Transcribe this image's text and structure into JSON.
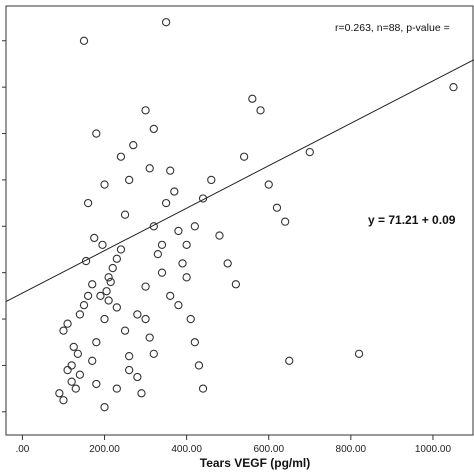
{
  "chart_data": {
    "type": "scatter",
    "title": "",
    "xlabel": "Tears VEGF (pg/ml)",
    "ylabel": "",
    "xlim": [
      -40,
      1100
    ],
    "ylim": [
      10,
      195
    ],
    "x_ticks": [
      0,
      200,
      400,
      600,
      800,
      1000
    ],
    "x_tick_labels": [
      ".00",
      "200.00",
      "400.00",
      "600.00",
      "800.00",
      "1000.00"
    ],
    "y_ticks": [
      20,
      40,
      60,
      80,
      100,
      120,
      140,
      160,
      180
    ],
    "grid": false,
    "annotation_stats": "r=0.263, n=88, p-value =",
    "annotation_equation": "y = 71.21 + 0.09",
    "fit_line": {
      "intercept": 71.21,
      "slope": 0.0915
    },
    "series": [
      {
        "points": [
          [
            90,
            28
          ],
          [
            120,
            40
          ],
          [
            135,
            45
          ],
          [
            100,
            55
          ],
          [
            125,
            48
          ],
          [
            110,
            58
          ],
          [
            140,
            62
          ],
          [
            150,
            66
          ],
          [
            160,
            70
          ],
          [
            170,
            75
          ],
          [
            155,
            85
          ],
          [
            175,
            95
          ],
          [
            160,
            110
          ],
          [
            180,
            140
          ],
          [
            150,
            180
          ],
          [
            200,
            118
          ],
          [
            195,
            92
          ],
          [
            210,
            78
          ],
          [
            220,
            82
          ],
          [
            230,
            86
          ],
          [
            205,
            72
          ],
          [
            215,
            76
          ],
          [
            240,
            90
          ],
          [
            250,
            105
          ],
          [
            260,
            120
          ],
          [
            270,
            135
          ],
          [
            240,
            130
          ],
          [
            300,
            150
          ],
          [
            310,
            125
          ],
          [
            320,
            100
          ],
          [
            330,
            88
          ],
          [
            340,
            92
          ],
          [
            350,
            110
          ],
          [
            360,
            124
          ],
          [
            370,
            115
          ],
          [
            380,
            98
          ],
          [
            390,
            84
          ],
          [
            400,
            78
          ],
          [
            410,
            60
          ],
          [
            420,
            50
          ],
          [
            430,
            40
          ],
          [
            440,
            30
          ],
          [
            300,
            60
          ],
          [
            310,
            52
          ],
          [
            320,
            45
          ],
          [
            280,
            35
          ],
          [
            290,
            28
          ],
          [
            260,
            38
          ],
          [
            250,
            55
          ],
          [
            230,
            65
          ],
          [
            210,
            68
          ],
          [
            190,
            70
          ],
          [
            200,
            60
          ],
          [
            180,
            50
          ],
          [
            170,
            42
          ],
          [
            140,
            36
          ],
          [
            130,
            30
          ],
          [
            120,
            33
          ],
          [
            100,
            25
          ],
          [
            110,
            38
          ],
          [
            200,
            22
          ],
          [
            230,
            30
          ],
          [
            260,
            44
          ],
          [
            280,
            62
          ],
          [
            300,
            74
          ],
          [
            340,
            80
          ],
          [
            360,
            70
          ],
          [
            380,
            66
          ],
          [
            400,
            92
          ],
          [
            420,
            100
          ],
          [
            440,
            112
          ],
          [
            460,
            120
          ],
          [
            480,
            96
          ],
          [
            500,
            84
          ],
          [
            520,
            75
          ],
          [
            540,
            130
          ],
          [
            560,
            155
          ],
          [
            580,
            150
          ],
          [
            600,
            118
          ],
          [
            620,
            108
          ],
          [
            640,
            102
          ],
          [
            650,
            42
          ],
          [
            700,
            132
          ],
          [
            820,
            45
          ],
          [
            1050,
            160
          ],
          [
            180,
            32
          ],
          [
            320,
            142
          ],
          [
            350,
            188
          ]
        ]
      }
    ]
  }
}
